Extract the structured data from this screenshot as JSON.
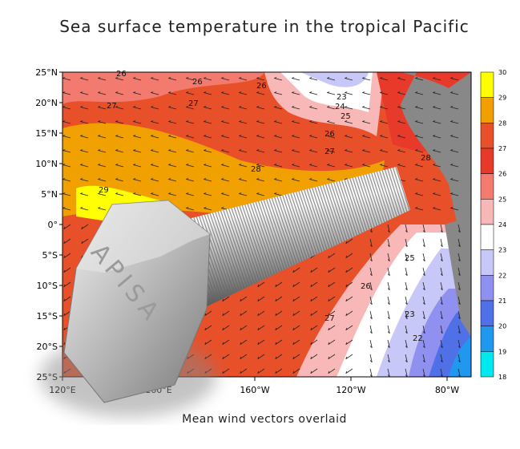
{
  "title": "Sea surface temperature in the tropical Pacific",
  "subtitle": "Mean wind vectors overlaid",
  "lat_labels": [
    "25°N",
    "20°N",
    "15°N",
    "10°N",
    "5°N",
    "0°",
    "5°S",
    "10°S",
    "15°S",
    "20°S",
    "25°S"
  ],
  "lon_labels": [
    "120°E",
    "160°E",
    "160°W",
    "120°W",
    "80°W"
  ],
  "colorbar": {
    "labels": [
      "30",
      "29",
      "28",
      "27",
      "26",
      "25",
      "24",
      "23",
      "22",
      "21",
      "20",
      "19",
      "18"
    ],
    "colors": [
      "#ffff00",
      "#f0a000",
      "#e8502a",
      "#e83a2a",
      "#f27a6e",
      "#f8b8b8",
      "#ffffff",
      "#c8c8f8",
      "#9090f0",
      "#5070e8",
      "#2098f0",
      "#00e8f0"
    ]
  },
  "contour_labels": [
    "26",
    "26",
    "26",
    "27",
    "23",
    "24",
    "25",
    "26",
    "27",
    "28",
    "29",
    "28",
    "27",
    "26",
    "25",
    "23",
    "22",
    "27"
  ],
  "bolt_text": "APISA"
}
